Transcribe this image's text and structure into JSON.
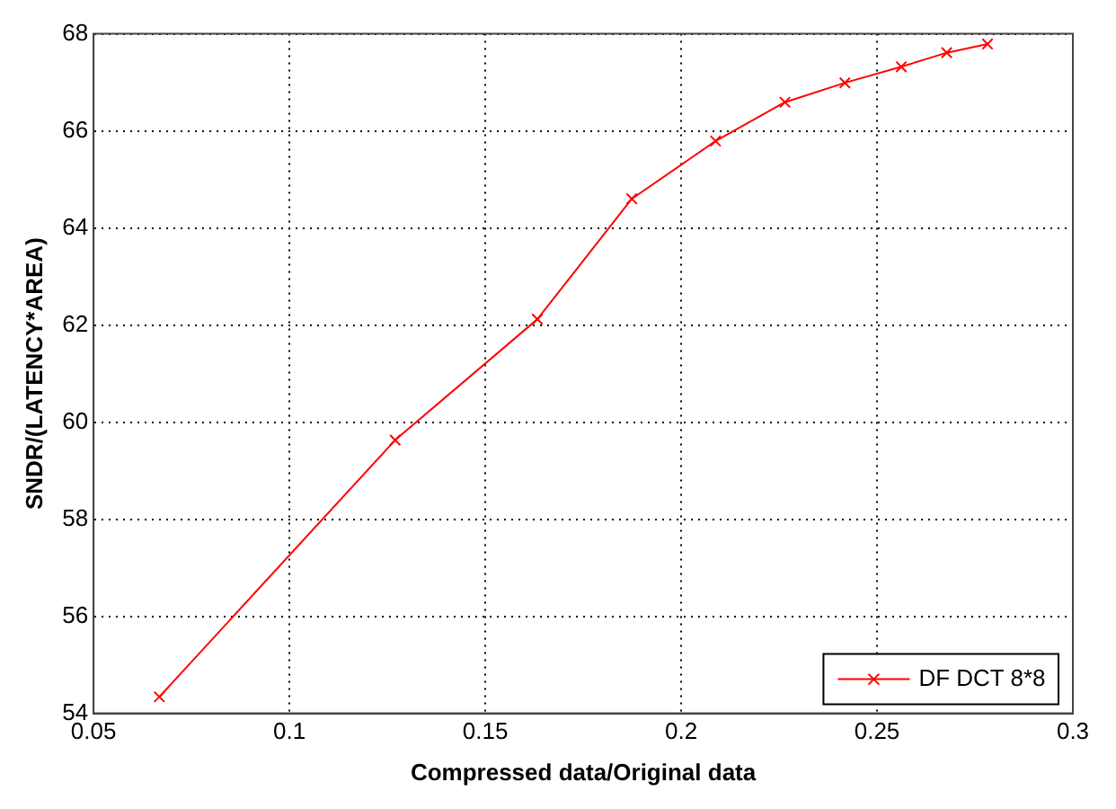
{
  "chart_data": {
    "type": "line",
    "xlabel": "Compressed data/Original data",
    "ylabel": "SNDR/(LATENCY*AREA)",
    "x": [
      0.0668,
      0.127,
      0.1633,
      0.1874,
      0.2088,
      0.2265,
      0.2418,
      0.2562,
      0.2678,
      0.2782
    ],
    "series": [
      {
        "name": "DF DCT 8*8",
        "color": "#ff0000",
        "values": [
          54.34,
          59.63,
          62.12,
          64.6,
          65.79,
          66.59,
          66.99,
          67.32,
          67.61,
          67.79
        ]
      }
    ],
    "xlim": [
      0.05,
      0.3
    ],
    "xticks": [
      0.05,
      0.1,
      0.15,
      0.2,
      0.25,
      0.3
    ],
    "ylim": [
      54,
      68
    ],
    "yticks": [
      54,
      56,
      58,
      60,
      62,
      64,
      66,
      68
    ],
    "grid": true,
    "legend": "bottom right",
    "marker": "cross",
    "line_style": "solid"
  }
}
